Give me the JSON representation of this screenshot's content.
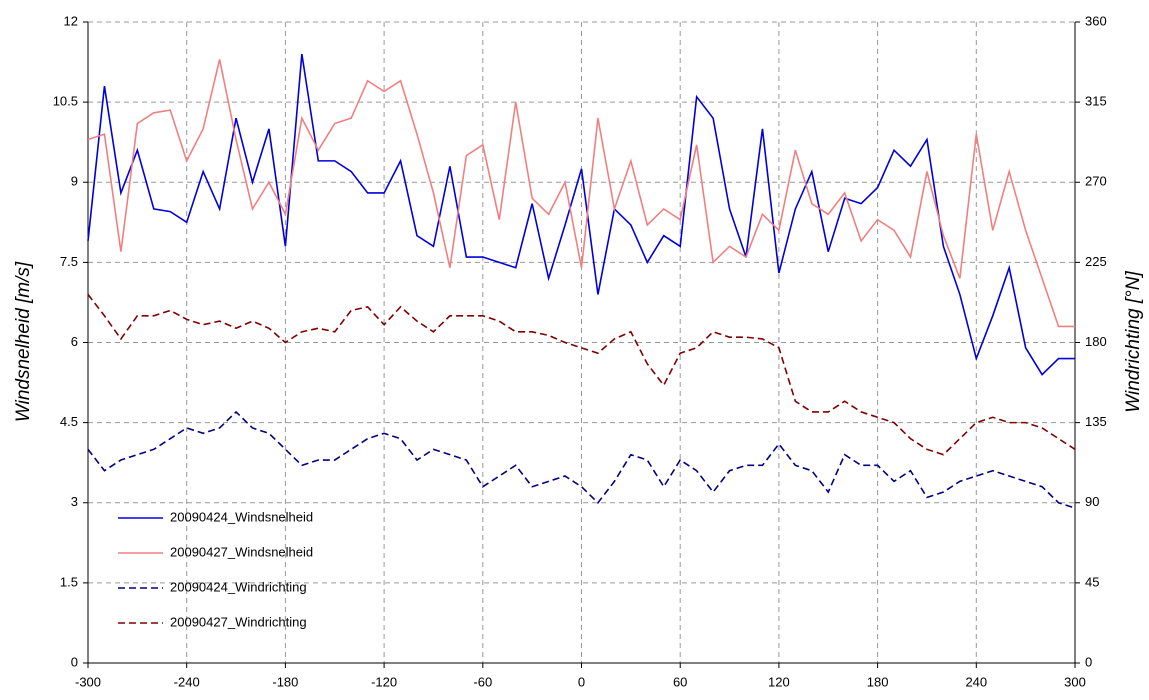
{
  "chart_data": {
    "type": "line",
    "ylabel": "Windsnelheid [m/s]",
    "y2label": "Windrichting [°N]",
    "xlim": [
      -300,
      300
    ],
    "xticks": [
      -300,
      -240,
      -180,
      -120,
      -60,
      0,
      60,
      120,
      180,
      240,
      300
    ],
    "ylim": [
      0,
      12
    ],
    "yticks": [
      0,
      1.5,
      3,
      4.5,
      6,
      7.5,
      9,
      10.5,
      12
    ],
    "y2lim": [
      0,
      360
    ],
    "y2ticks": [
      0,
      45,
      90,
      135,
      180,
      225,
      270,
      315,
      360
    ],
    "grid": true,
    "legend": "lower left",
    "x": [
      -300,
      -290,
      -280,
      -270,
      -260,
      -250,
      -240,
      -230,
      -220,
      -210,
      -200,
      -190,
      -180,
      -170,
      -160,
      -150,
      -140,
      -130,
      -120,
      -110,
      -100,
      -90,
      -80,
      -70,
      -60,
      -50,
      -40,
      -30,
      -20,
      -10,
      0,
      10,
      20,
      30,
      40,
      50,
      60,
      70,
      80,
      90,
      100,
      110,
      120,
      130,
      140,
      150,
      160,
      170,
      180,
      190,
      200,
      210,
      220,
      230,
      240,
      250,
      260,
      270,
      280,
      290,
      300
    ],
    "series": [
      {
        "name": "20090424_Windsnelheid",
        "color": "#0000dd",
        "dash": false,
        "values": [
          7.9,
          10.8,
          8.8,
          9.6,
          8.5,
          8.45,
          8.25,
          9.2,
          8.5,
          10.2,
          9.0,
          10.0,
          7.8,
          11.4,
          9.4,
          9.4,
          9.2,
          8.8,
          8.8,
          9.4,
          8.0,
          7.8,
          9.3,
          7.6,
          7.6,
          7.5,
          7.4,
          8.6,
          7.2,
          8.2,
          9.25,
          6.9,
          8.5,
          8.2,
          7.5,
          8.0,
          7.8,
          10.6,
          10.2,
          8.5,
          7.6,
          10.0,
          7.3,
          8.5,
          9.2,
          7.7,
          8.7,
          8.6,
          8.9,
          9.6,
          9.3,
          9.8,
          7.8,
          6.9,
          5.7,
          6.5,
          7.4,
          5.9,
          5.4,
          5.7,
          5.7
        ]
      },
      {
        "name": "20090427_Windsnelheid",
        "color": "#f08080",
        "dash": false,
        "values": [
          9.8,
          9.9,
          7.7,
          10.1,
          10.3,
          10.35,
          9.4,
          10.0,
          11.3,
          9.8,
          8.5,
          9.0,
          8.4,
          10.2,
          9.6,
          10.1,
          10.2,
          10.9,
          10.7,
          10.9,
          9.9,
          8.8,
          7.4,
          9.5,
          9.7,
          8.3,
          10.5,
          8.7,
          8.4,
          9.0,
          7.4,
          10.2,
          8.5,
          9.4,
          8.2,
          8.5,
          8.3,
          9.7,
          7.5,
          7.8,
          7.6,
          8.4,
          8.1,
          9.6,
          8.6,
          8.4,
          8.8,
          7.9,
          8.3,
          8.1,
          7.6,
          9.2,
          8.0,
          7.2,
          9.9,
          8.1,
          9.2,
          8.1,
          7.2,
          6.3,
          6.3
        ]
      },
      {
        "name": "20090424_Windrichting",
        "color": "#000080",
        "dash": true,
        "axis": "y2",
        "values": [
          120,
          108,
          114,
          117,
          120,
          126,
          132,
          129,
          132,
          141,
          132,
          129,
          120,
          111,
          114,
          114,
          120,
          126,
          129,
          126,
          114,
          120,
          117,
          114,
          99,
          105,
          111,
          99,
          102,
          105,
          99,
          90,
          102,
          117,
          114,
          99,
          114,
          108,
          96,
          108,
          111,
          111,
          123,
          111,
          108,
          96,
          117,
          111,
          111,
          102,
          108,
          93,
          96,
          102,
          105,
          108,
          105,
          102,
          99,
          90,
          87
        ]
      },
      {
        "name": "20090427_Windrichting",
        "color": "#800000",
        "dash": true,
        "axis": "y2",
        "values": [
          207,
          195,
          182,
          195,
          195,
          198,
          193,
          190,
          192,
          188,
          192,
          188,
          180,
          186,
          188,
          186,
          198,
          200,
          190,
          200,
          192,
          186,
          195,
          195,
          195,
          192,
          186,
          186,
          184,
          180,
          177,
          174,
          182,
          186,
          168,
          156,
          174,
          177,
          186,
          183,
          183,
          182,
          177,
          147,
          141,
          141,
          147,
          141,
          138,
          135,
          126,
          120,
          117,
          126,
          135,
          138,
          135,
          135,
          132,
          126,
          120
        ]
      }
    ]
  }
}
